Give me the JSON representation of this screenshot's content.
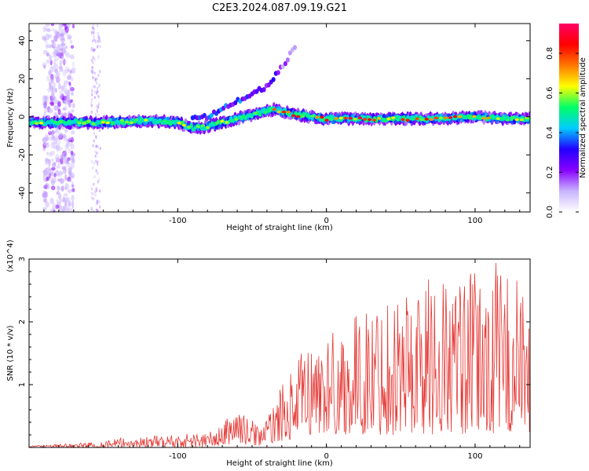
{
  "figure": {
    "title": "C2E3.2024.087.09.19.G21"
  },
  "chart_data": [
    {
      "type": "heatmap",
      "title": "C2E3.2024.087.09.19.G21",
      "xlabel": "Height of straight line (km)",
      "ylabel": "Frequency (Hz)",
      "xlim": [
        -200,
        137
      ],
      "ylim": [
        -50,
        49
      ],
      "xticks": [
        -100,
        0,
        100
      ],
      "xtick_labels": [
        "-100",
        "0",
        "100"
      ],
      "yticks": [
        -40,
        -20,
        0,
        20,
        40
      ],
      "ytick_labels": [
        "-40",
        "-20",
        "0",
        "20",
        "40"
      ],
      "grid": false,
      "colorbar": {
        "label": "Normalized spectral amplitude",
        "range": [
          0,
          0.95
        ],
        "ticks": [
          0,
          0.2,
          0.4,
          0.6,
          0.8
        ],
        "tick_labels": [
          "0.0",
          "0.2",
          "0.4",
          "0.6",
          "0.8"
        ],
        "colormap": [
          "#ffffff",
          "#c8b4ff",
          "#8800ff",
          "#2200ff",
          "#00ccff",
          "#00ff66",
          "#ffff00",
          "#ff7700",
          "#ff0000",
          "#ff0066"
        ]
      },
      "main_trace": {
        "x": [
          -200,
          -150,
          -120,
          -100,
          -90,
          -80,
          -70,
          -60,
          -50,
          -40,
          -35,
          -30,
          -20,
          -10,
          0,
          20,
          40,
          60,
          80,
          100,
          120,
          137
        ],
        "y": [
          -3,
          -3,
          -2,
          -3,
          -6,
          -5,
          -3,
          -1,
          1,
          3,
          4,
          3,
          1,
          0,
          -1,
          -1,
          -1,
          -1,
          -1,
          0,
          -1,
          -1
        ],
        "peak_amplitude": 0.9
      },
      "secondary_trace": {
        "x": [
          -90,
          -80,
          -70,
          -60,
          -50,
          -40,
          -30,
          -25,
          -20
        ],
        "y": [
          -1,
          0,
          4,
          8,
          12,
          16,
          26,
          32,
          38
        ],
        "peak_amplitude": 0.4
      },
      "noise_band_x": [
        -190,
        -170
      ]
    },
    {
      "type": "line",
      "xlabel": "Height of straight line (km)",
      "ylabel": "SNR (10 * v/v)",
      "y_multiplier": "(x10^4)",
      "xlim": [
        -200,
        137
      ],
      "ylim": [
        0,
        3
      ],
      "xticks": [
        -100,
        0,
        100
      ],
      "xtick_labels": [
        "-100",
        "0",
        "100"
      ],
      "yticks": [
        1,
        2,
        3
      ],
      "ytick_labels": [
        "1",
        "2",
        "3"
      ],
      "grid": false,
      "series_color": "#e53935",
      "envelope": {
        "x": [
          -200,
          -160,
          -140,
          -120,
          -100,
          -80,
          -70,
          -65,
          -60,
          -55,
          -50,
          -45,
          -40,
          -35,
          -30,
          -25,
          -20,
          -15,
          -10,
          0,
          10,
          20,
          30,
          40,
          50,
          60,
          70,
          80,
          90,
          100,
          110,
          115,
          120,
          125,
          130,
          137
        ],
        "y_max": [
          0.03,
          0.08,
          0.15,
          0.18,
          0.22,
          0.25,
          0.35,
          0.58,
          0.68,
          0.5,
          0.45,
          0.4,
          0.45,
          0.75,
          1.0,
          1.15,
          1.3,
          1.7,
          1.65,
          1.85,
          2.0,
          2.1,
          2.3,
          2.5,
          2.6,
          2.7,
          2.8,
          2.8,
          2.75,
          2.8,
          2.9,
          3.0,
          2.85,
          2.95,
          2.75,
          2.05
        ],
        "y_min": [
          0.0,
          0.0,
          0.0,
          0.0,
          0.0,
          0.0,
          0.02,
          0.05,
          0.08,
          0.05,
          0.03,
          0.03,
          0.05,
          0.08,
          0.1,
          0.12,
          0.15,
          0.2,
          0.2,
          0.2,
          0.2,
          0.2,
          0.2,
          0.2,
          0.2,
          0.2,
          0.2,
          0.2,
          0.2,
          0.2,
          0.2,
          0.2,
          0.2,
          0.2,
          0.2,
          0.2
        ]
      }
    }
  ]
}
